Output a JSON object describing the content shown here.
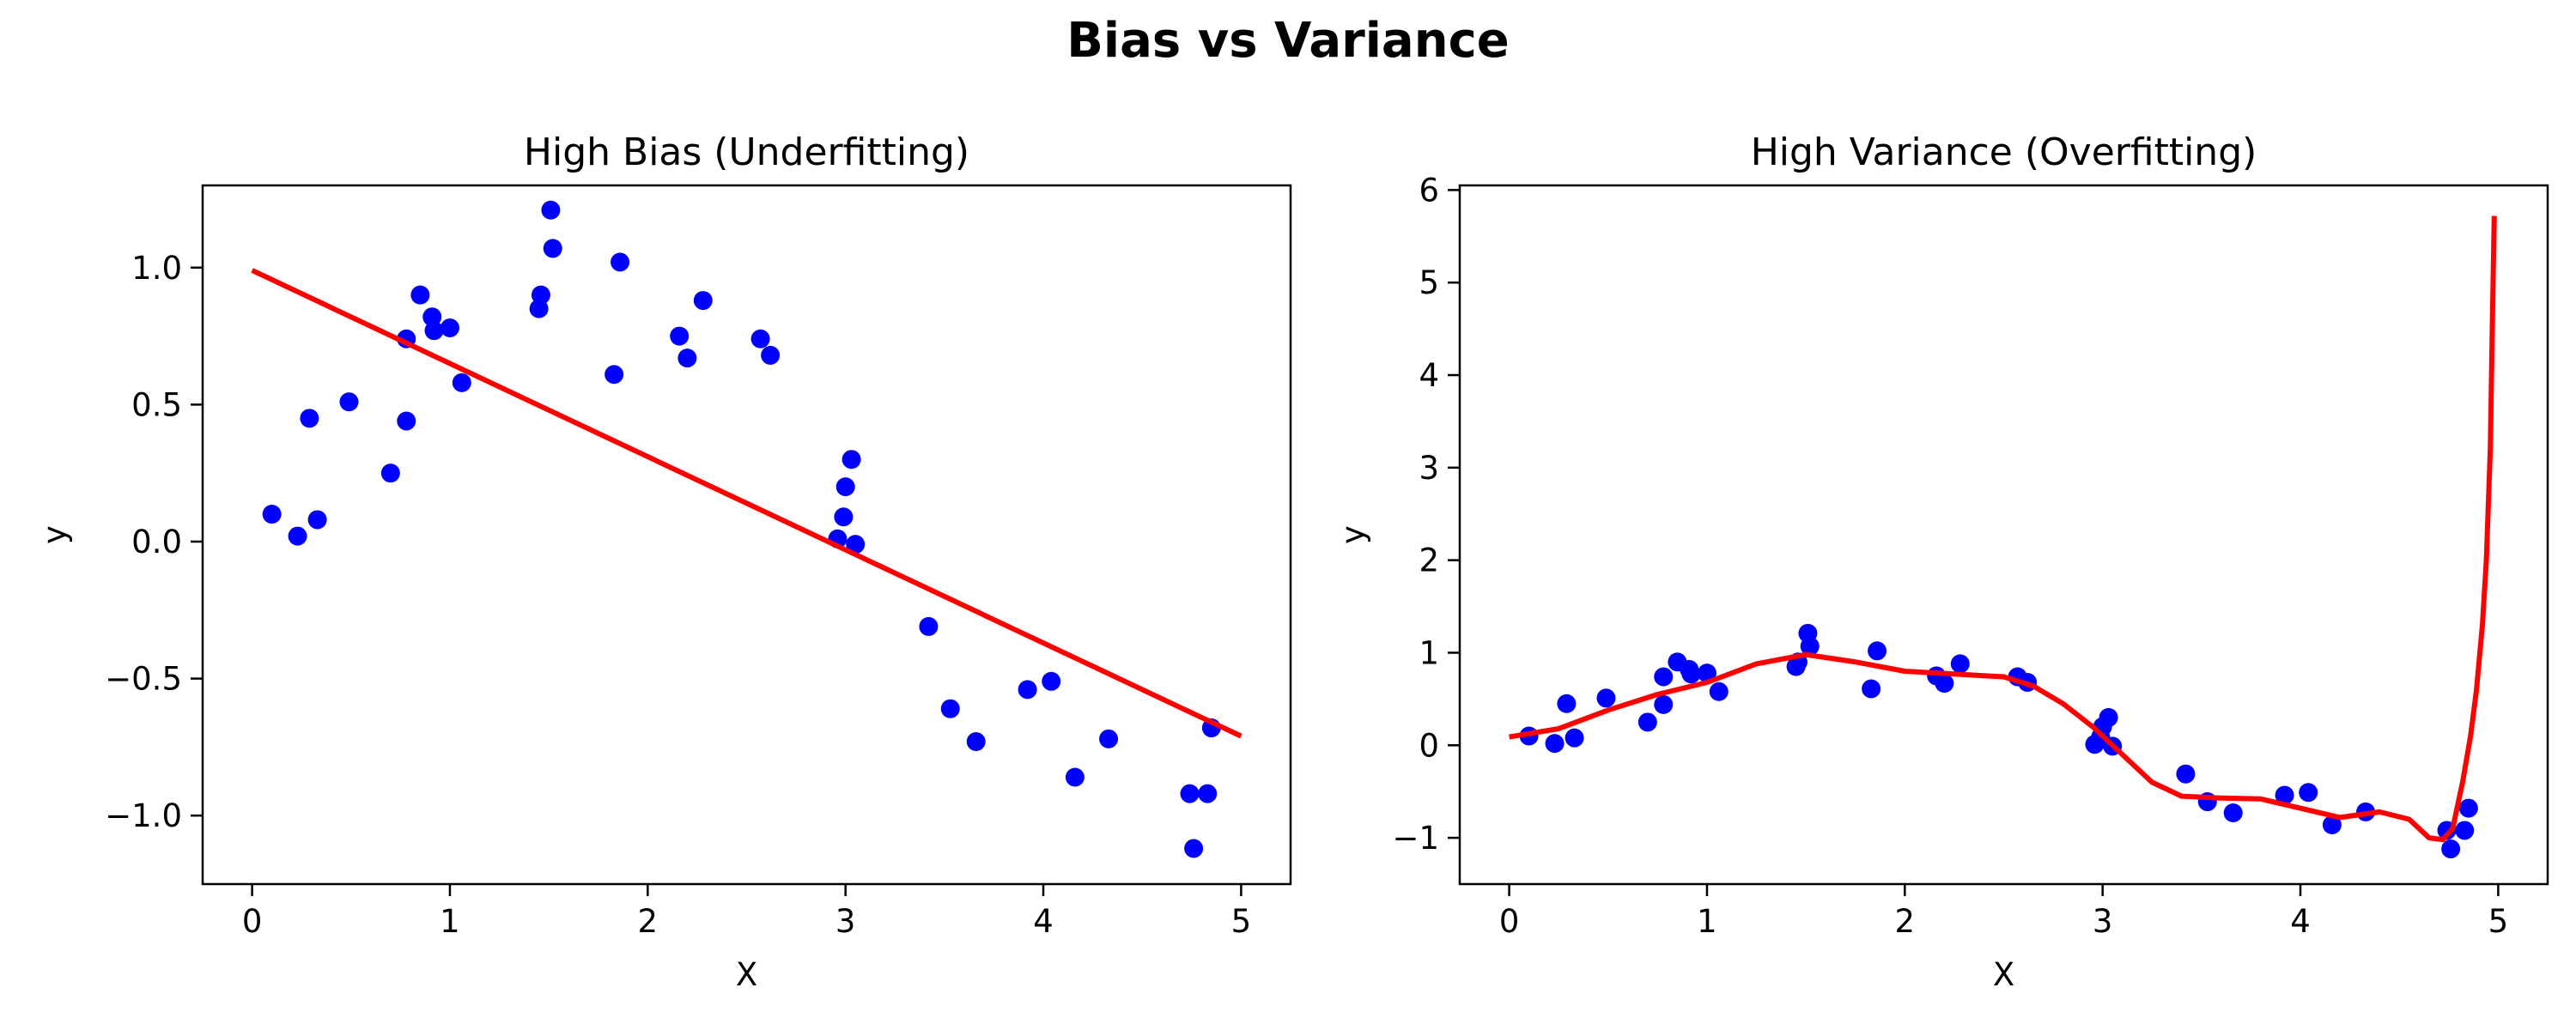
{
  "figure": {
    "suptitle": "Bias vs Variance"
  },
  "colors": {
    "points": "#0000ff",
    "line": "#ff0000",
    "axes": "#000000"
  },
  "chart_data": [
    {
      "type": "scatter",
      "title": "High Bias (Underfitting)",
      "xlabel": "X",
      "ylabel": "y",
      "xlim": [
        -0.25,
        5.25
      ],
      "ylim": [
        -1.25,
        1.3
      ],
      "xticks": [
        0,
        1,
        2,
        3,
        4,
        5
      ],
      "xtick_labels": [
        "0",
        "1",
        "2",
        "3",
        "4",
        "5"
      ],
      "yticks": [
        -1.0,
        -0.5,
        0.0,
        0.5,
        1.0
      ],
      "ytick_labels": [
        "−1.0",
        "−0.5",
        "0.0",
        "0.5",
        "1.0"
      ],
      "grid": false,
      "points": {
        "x": [
          0.1,
          0.23,
          0.29,
          0.33,
          0.49,
          0.7,
          0.78,
          0.78,
          0.85,
          0.91,
          0.92,
          1.0,
          1.06,
          1.45,
          1.46,
          1.51,
          1.52,
          1.83,
          1.86,
          2.16,
          2.2,
          2.28,
          2.57,
          2.62,
          2.96,
          2.99,
          3.0,
          3.03,
          3.05,
          3.42,
          3.53,
          3.66,
          3.92,
          4.04,
          4.16,
          4.33,
          4.74,
          4.76,
          4.83,
          4.85
        ],
        "y": [
          0.1,
          0.02,
          0.45,
          0.08,
          0.51,
          0.25,
          0.74,
          0.44,
          0.9,
          0.82,
          0.77,
          0.78,
          0.58,
          0.85,
          0.9,
          1.21,
          1.07,
          0.61,
          1.02,
          0.75,
          0.67,
          0.88,
          0.74,
          0.68,
          0.01,
          0.09,
          0.2,
          0.3,
          -0.01,
          -0.31,
          -0.61,
          -0.73,
          -0.54,
          -0.51,
          -0.86,
          -0.72,
          -0.92,
          -1.12,
          -0.92,
          -0.68
        ]
      },
      "fit_line": {
        "x": [
          0,
          5
        ],
        "y": [
          0.99,
          -0.71
        ]
      }
    },
    {
      "type": "scatter",
      "title": "High Variance (Overfitting)",
      "xlabel": "X",
      "ylabel": "y",
      "xlim": [
        -0.25,
        5.25
      ],
      "ylim": [
        -1.5,
        6.05
      ],
      "xticks": [
        0,
        1,
        2,
        3,
        4,
        5
      ],
      "xtick_labels": [
        "0",
        "1",
        "2",
        "3",
        "4",
        "5"
      ],
      "yticks": [
        -1,
        0,
        1,
        2,
        3,
        4,
        5,
        6
      ],
      "ytick_labels": [
        "−1",
        "0",
        "1",
        "2",
        "3",
        "4",
        "5",
        "6"
      ],
      "grid": false,
      "points": {
        "x": [
          0.1,
          0.23,
          0.29,
          0.33,
          0.49,
          0.7,
          0.78,
          0.78,
          0.85,
          0.91,
          0.92,
          1.0,
          1.06,
          1.45,
          1.46,
          1.51,
          1.52,
          1.83,
          1.86,
          2.16,
          2.2,
          2.28,
          2.57,
          2.62,
          2.96,
          2.99,
          3.0,
          3.03,
          3.05,
          3.42,
          3.53,
          3.66,
          3.92,
          4.04,
          4.16,
          4.33,
          4.74,
          4.76,
          4.83,
          4.85
        ],
        "y": [
          0.1,
          0.02,
          0.45,
          0.08,
          0.51,
          0.25,
          0.74,
          0.44,
          0.9,
          0.82,
          0.77,
          0.78,
          0.58,
          0.85,
          0.9,
          1.21,
          1.07,
          0.61,
          1.02,
          0.75,
          0.67,
          0.88,
          0.74,
          0.68,
          0.01,
          0.09,
          0.2,
          0.3,
          -0.01,
          -0.31,
          -0.61,
          -0.73,
          -0.54,
          -0.51,
          -0.86,
          -0.72,
          -0.92,
          -1.12,
          -0.92,
          -0.68
        ]
      },
      "fit_curve": {
        "x": [
          0.0,
          0.25,
          0.5,
          0.75,
          1.0,
          1.25,
          1.5,
          1.75,
          2.0,
          2.25,
          2.5,
          2.65,
          2.8,
          2.95,
          3.0,
          3.1,
          3.25,
          3.4,
          3.6,
          3.8,
          4.0,
          4.2,
          4.4,
          4.55,
          4.65,
          4.72,
          4.77,
          4.82,
          4.86,
          4.89,
          4.92,
          4.94,
          4.96,
          4.97,
          4.98
        ],
        "y": [
          0.09,
          0.18,
          0.38,
          0.55,
          0.68,
          0.88,
          0.98,
          0.9,
          0.8,
          0.77,
          0.74,
          0.64,
          0.45,
          0.2,
          0.1,
          -0.1,
          -0.4,
          -0.55,
          -0.57,
          -0.58,
          -0.68,
          -0.78,
          -0.72,
          -0.8,
          -1.0,
          -1.02,
          -0.9,
          -0.4,
          0.1,
          0.6,
          1.3,
          2.0,
          3.2,
          4.5,
          5.72
        ]
      }
    }
  ]
}
